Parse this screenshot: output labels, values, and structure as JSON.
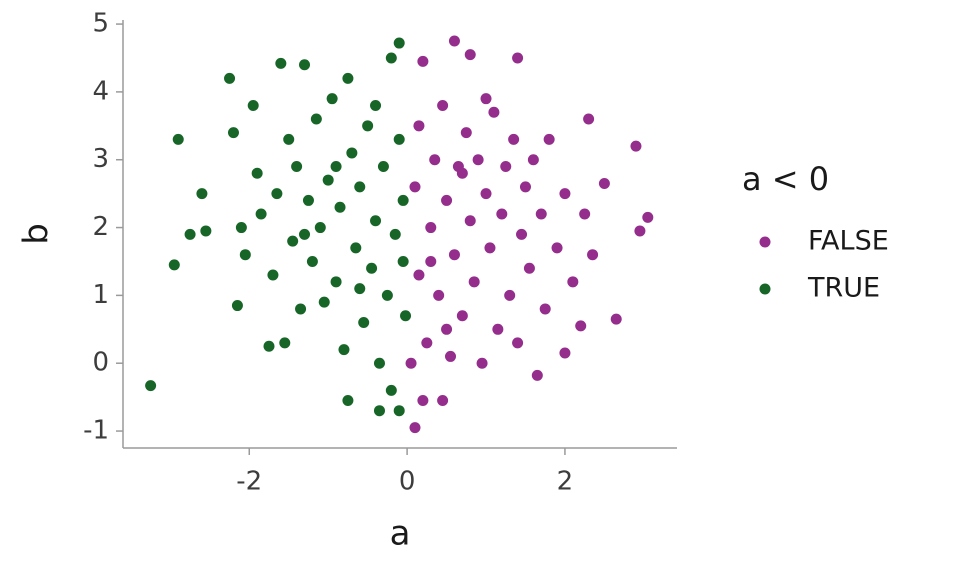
{
  "chart_data": {
    "type": "scatter",
    "x_label": "a",
    "y_label": "b",
    "legend_title": "a < 0",
    "legend": "right",
    "xlim": [
      -3.6,
      3.42
    ],
    "ylim": [
      -1.25,
      5.06
    ],
    "xticks": [
      -2,
      0,
      2
    ],
    "yticks": [
      -1,
      0,
      1,
      2,
      3,
      4,
      5
    ],
    "series": [
      {
        "name": "FALSE",
        "color": "#942d8c",
        "x": [
          0.1,
          0.2,
          0.45,
          0.05,
          0.15,
          0.1,
          0.15,
          0.2,
          0.25,
          0.3,
          0.35,
          0.4,
          0.45,
          0.5,
          0.55,
          0.6,
          0.6,
          0.65,
          0.7,
          0.75,
          0.8,
          0.8,
          0.85,
          0.9,
          0.95,
          1.0,
          1.05,
          1.1,
          1.15,
          1.2,
          1.25,
          1.3,
          1.35,
          1.4,
          1.4,
          1.45,
          1.5,
          1.55,
          1.6,
          1.65,
          1.7,
          1.75,
          1.8,
          1.9,
          2.0,
          2.0,
          2.1,
          2.2,
          2.25,
          2.3,
          2.35,
          2.5,
          2.65,
          2.9,
          2.95,
          3.05,
          0.3,
          0.7,
          1.0,
          0.5
        ],
        "values": [
          -0.95,
          -0.55,
          -0.55,
          0.0,
          1.3,
          2.6,
          3.5,
          4.45,
          0.3,
          2.0,
          3.0,
          1.0,
          3.8,
          2.4,
          0.1,
          4.75,
          1.6,
          2.9,
          0.7,
          3.4,
          4.55,
          2.1,
          1.2,
          3.0,
          0.0,
          2.5,
          1.7,
          3.7,
          0.5,
          2.2,
          2.9,
          1.0,
          3.3,
          4.5,
          0.3,
          1.9,
          2.6,
          1.4,
          3.0,
          -0.18,
          2.2,
          0.8,
          3.3,
          1.7,
          0.15,
          2.5,
          1.2,
          0.55,
          2.2,
          3.6,
          1.6,
          2.65,
          0.65,
          3.2,
          1.95,
          2.15,
          1.5,
          2.8,
          3.9,
          0.5
        ]
      },
      {
        "name": "TRUE",
        "color": "#176628",
        "x": [
          -3.25,
          -2.95,
          -2.9,
          -2.75,
          -2.6,
          -2.55,
          -2.25,
          -2.2,
          -2.15,
          -2.1,
          -2.05,
          -1.95,
          -1.9,
          -1.85,
          -1.75,
          -1.7,
          -1.65,
          -1.6,
          -1.55,
          -1.5,
          -1.45,
          -1.4,
          -1.35,
          -1.3,
          -1.25,
          -1.2,
          -1.15,
          -1.1,
          -1.05,
          -1.0,
          -0.95,
          -0.9,
          -0.85,
          -0.8,
          -0.75,
          -0.75,
          -0.7,
          -0.65,
          -0.6,
          -0.55,
          -0.5,
          -0.45,
          -0.4,
          -0.35,
          -0.35,
          -0.3,
          -0.25,
          -0.2,
          -0.2,
          -0.15,
          -0.1,
          -0.1,
          -0.1,
          -0.05,
          -0.05,
          -0.02,
          -0.6,
          -0.9,
          -1.3,
          -0.4
        ],
        "values": [
          -0.33,
          1.45,
          3.3,
          1.9,
          2.5,
          1.95,
          4.2,
          3.4,
          0.85,
          2.0,
          1.6,
          3.8,
          2.8,
          2.2,
          0.25,
          1.3,
          2.5,
          4.42,
          0.3,
          3.3,
          1.8,
          2.9,
          0.8,
          4.4,
          2.4,
          1.5,
          3.6,
          2.0,
          0.9,
          2.7,
          3.9,
          1.2,
          2.3,
          0.2,
          4.2,
          -0.55,
          3.1,
          1.7,
          2.6,
          0.6,
          3.5,
          1.4,
          2.1,
          -0.7,
          0.0,
          2.9,
          1.0,
          4.5,
          -0.4,
          1.9,
          4.72,
          -0.7,
          3.3,
          1.5,
          2.4,
          0.7,
          1.1,
          2.9,
          1.9,
          3.8
        ]
      }
    ]
  }
}
